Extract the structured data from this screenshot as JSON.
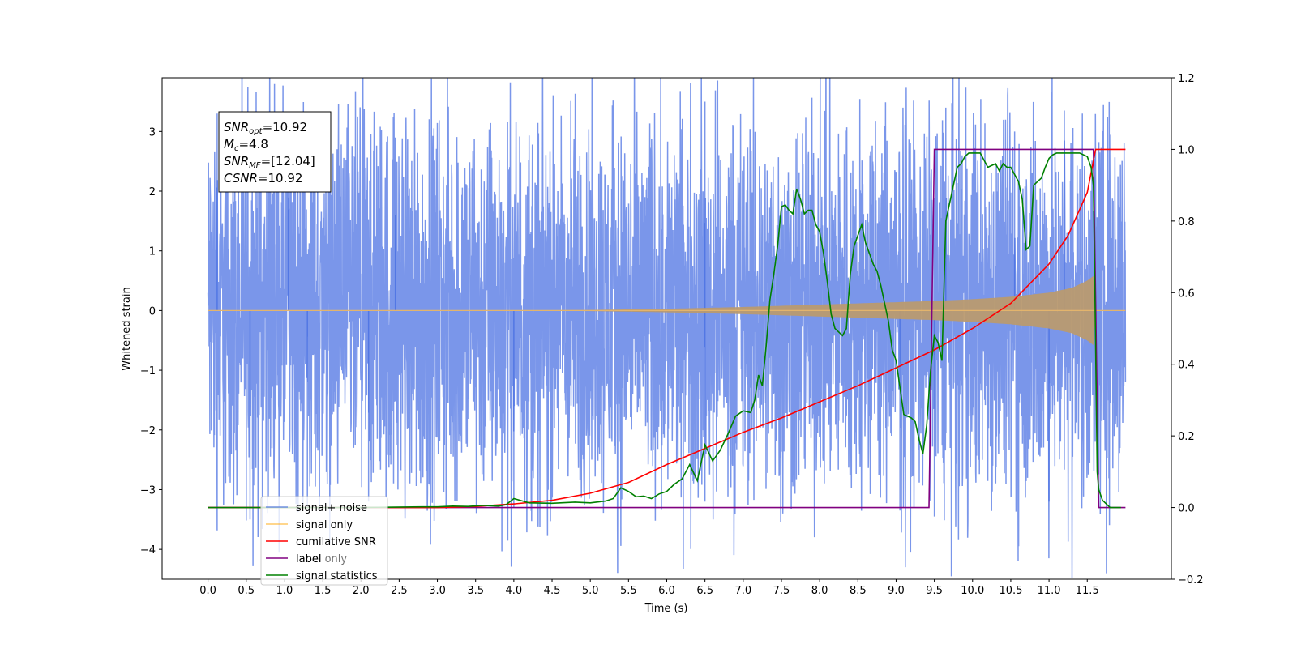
{
  "chart_data": {
    "type": "line",
    "xlabel": "Time (s)",
    "ylabel": "Whitened strain",
    "xlim": [
      -0.6,
      12.6
    ],
    "ylim_left": [
      -4.5,
      3.9
    ],
    "ylim_right": [
      -0.2,
      1.2
    ],
    "x_ticks": [
      0.0,
      0.5,
      1.0,
      1.5,
      2.0,
      2.5,
      3.0,
      3.5,
      4.0,
      4.5,
      5.0,
      5.5,
      6.0,
      6.5,
      7.0,
      7.5,
      8.0,
      8.5,
      9.0,
      9.5,
      10.0,
      10.5,
      11.0,
      11.5
    ],
    "x_tick_labels": [
      "0.0",
      "0.5",
      "1.0",
      "1.5",
      "2.0",
      "2.5",
      "3.0",
      "3.5",
      "4.0",
      "4.5",
      "5.0",
      "5.5",
      "6.0",
      "6.5",
      "7.0",
      "7.5",
      "8.0",
      "8.5",
      "9.0",
      "9.5",
      "10.0",
      "10.5",
      "11.0",
      "11.5"
    ],
    "y_left_ticks": [
      -4,
      -3,
      -2,
      -1,
      0,
      1,
      2,
      3
    ],
    "y_left_tick_labels": [
      "−4",
      "−3",
      "−2",
      "−1",
      "0",
      "1",
      "2",
      "3"
    ],
    "y_right_ticks": [
      -0.2,
      0.0,
      0.2,
      0.4,
      0.6,
      0.8,
      1.0,
      1.2
    ],
    "y_right_tick_labels": [
      "−0.2",
      "0.0",
      "0.2",
      "0.4",
      "0.6",
      "0.8",
      "1.0",
      "1.2"
    ],
    "grid": false,
    "legend_position": "bottom-left",
    "annotation": {
      "lines": [
        {
          "sym": "SNR",
          "sub": "opt",
          "val": "=10.92"
        },
        {
          "sym": "M",
          "sub": "c",
          "val": "=4.8"
        },
        {
          "sym": "SNR",
          "sub": "MF",
          "val": "=[12.04]"
        },
        {
          "sym": "CSNR",
          "sub": "",
          "val": "=10.92"
        }
      ]
    },
    "series": [
      {
        "name": "signal+ noise",
        "axis": "left",
        "color": "#4169e1",
        "kind": "noise_band",
        "x_start": 0.0,
        "x_end": 12.0,
        "typical_amplitude": 1.6,
        "peak_values": [
          {
            "x": 0.12,
            "y": 3.3
          },
          {
            "x": 0.55,
            "y": -3.5
          },
          {
            "x": 1.05,
            "y": 3.0
          },
          {
            "x": 1.3,
            "y": -3.3
          },
          {
            "x": 2.1,
            "y": -3.2
          },
          {
            "x": 2.45,
            "y": 2.9
          },
          {
            "x": 4.0,
            "y": -3.3
          },
          {
            "x": 6.5,
            "y": 3.5
          },
          {
            "x": 6.5,
            "y": -3.2
          },
          {
            "x": 9.05,
            "y": -3.35
          },
          {
            "x": 9.5,
            "y": -3.45
          },
          {
            "x": 9.65,
            "y": 3.4
          },
          {
            "x": 10.55,
            "y": 3.0
          },
          {
            "x": 11.0,
            "y": -3.2
          },
          {
            "x": 11.2,
            "y": 3.35
          }
        ]
      },
      {
        "name": "signal only",
        "axis": "left",
        "color": "#ffa500",
        "kind": "envelope",
        "x": [
          0.0,
          4.0,
          5.0,
          6.0,
          7.0,
          7.5,
          8.0,
          8.5,
          9.0,
          9.5,
          10.0,
          10.5,
          11.0,
          11.3,
          11.5,
          11.6,
          11.61,
          12.0
        ],
        "amplitude": [
          0.0,
          0.0,
          0.01,
          0.03,
          0.06,
          0.08,
          0.1,
          0.12,
          0.14,
          0.16,
          0.19,
          0.23,
          0.3,
          0.38,
          0.5,
          0.6,
          0.0,
          0.0
        ]
      },
      {
        "name": "cumilative SNR",
        "axis": "right",
        "color": "#ff0000",
        "x": [
          0.0,
          3.0,
          3.5,
          4.0,
          4.5,
          5.0,
          5.5,
          6.0,
          6.5,
          7.0,
          7.5,
          8.0,
          8.5,
          9.0,
          9.5,
          10.0,
          10.5,
          11.0,
          11.25,
          11.5,
          11.6,
          11.61,
          12.0
        ],
        "y": [
          0.0,
          0.0,
          0.003,
          0.01,
          0.02,
          0.04,
          0.07,
          0.12,
          0.165,
          0.21,
          0.25,
          0.295,
          0.34,
          0.39,
          0.44,
          0.5,
          0.57,
          0.68,
          0.76,
          0.88,
          0.99,
          1.0,
          1.0
        ]
      },
      {
        "name": "label",
        "axis": "right",
        "color": "#800080",
        "x": [
          0.0,
          9.43,
          9.5,
          11.58,
          11.65,
          12.0
        ],
        "y": [
          0.0,
          0.0,
          1.0,
          1.0,
          0.0,
          0.0
        ]
      },
      {
        "name": "signal statistics",
        "axis": "right",
        "color": "#008000",
        "x": [
          0.0,
          2.0,
          2.8,
          3.0,
          3.2,
          3.4,
          3.6,
          3.8,
          3.9,
          4.0,
          4.2,
          4.5,
          4.8,
          5.0,
          5.2,
          5.3,
          5.4,
          5.5,
          5.6,
          5.7,
          5.8,
          5.9,
          6.0,
          6.1,
          6.2,
          6.3,
          6.4,
          6.5,
          6.6,
          6.7,
          6.8,
          6.9,
          7.0,
          7.1,
          7.15,
          7.2,
          7.25,
          7.3,
          7.35,
          7.4,
          7.45,
          7.5,
          7.55,
          7.6,
          7.65,
          7.7,
          7.75,
          7.8,
          7.85,
          7.9,
          7.95,
          8.0,
          8.05,
          8.1,
          8.15,
          8.2,
          8.25,
          8.3,
          8.35,
          8.4,
          8.45,
          8.5,
          8.55,
          8.6,
          8.65,
          8.7,
          8.75,
          8.8,
          8.85,
          8.9,
          8.95,
          9.0,
          9.1,
          9.2,
          9.25,
          9.3,
          9.35,
          9.4,
          9.45,
          9.5,
          9.55,
          9.6,
          9.65,
          9.7,
          9.75,
          9.8,
          9.85,
          9.9,
          9.95,
          10.0,
          10.1,
          10.2,
          10.3,
          10.35,
          10.4,
          10.45,
          10.5,
          10.55,
          10.6,
          10.65,
          10.7,
          10.75,
          10.8,
          10.85,
          10.9,
          10.95,
          11.0,
          11.05,
          11.1,
          11.2,
          11.3,
          11.4,
          11.5,
          11.55,
          11.58,
          11.6,
          11.63,
          11.65,
          11.7,
          11.8,
          11.9,
          11.94
        ],
        "y": [
          0.0,
          0.0,
          0.002,
          0.002,
          0.004,
          0.003,
          0.006,
          0.004,
          0.008,
          0.025,
          0.013,
          0.012,
          0.015,
          0.013,
          0.018,
          0.025,
          0.055,
          0.045,
          0.03,
          0.032,
          0.025,
          0.038,
          0.045,
          0.065,
          0.08,
          0.12,
          0.075,
          0.175,
          0.13,
          0.16,
          0.205,
          0.255,
          0.27,
          0.265,
          0.3,
          0.37,
          0.34,
          0.45,
          0.58,
          0.65,
          0.73,
          0.84,
          0.845,
          0.83,
          0.82,
          0.89,
          0.86,
          0.82,
          0.83,
          0.83,
          0.79,
          0.77,
          0.71,
          0.63,
          0.54,
          0.5,
          0.49,
          0.48,
          0.5,
          0.65,
          0.73,
          0.76,
          0.79,
          0.74,
          0.71,
          0.68,
          0.66,
          0.62,
          0.57,
          0.52,
          0.44,
          0.41,
          0.26,
          0.25,
          0.24,
          0.19,
          0.15,
          0.23,
          0.38,
          0.48,
          0.46,
          0.41,
          0.8,
          0.85,
          0.9,
          0.95,
          0.96,
          0.98,
          0.99,
          0.99,
          0.99,
          0.95,
          0.96,
          0.94,
          0.96,
          0.95,
          0.95,
          0.93,
          0.91,
          0.86,
          0.72,
          0.73,
          0.9,
          0.91,
          0.92,
          0.95,
          0.975,
          0.985,
          0.99,
          0.99,
          0.99,
          0.99,
          0.98,
          0.95,
          0.9,
          0.6,
          0.1,
          0.05,
          0.02,
          0.0,
          0.0,
          0.0
        ]
      }
    ],
    "legend_extra": [
      "label only"
    ]
  }
}
